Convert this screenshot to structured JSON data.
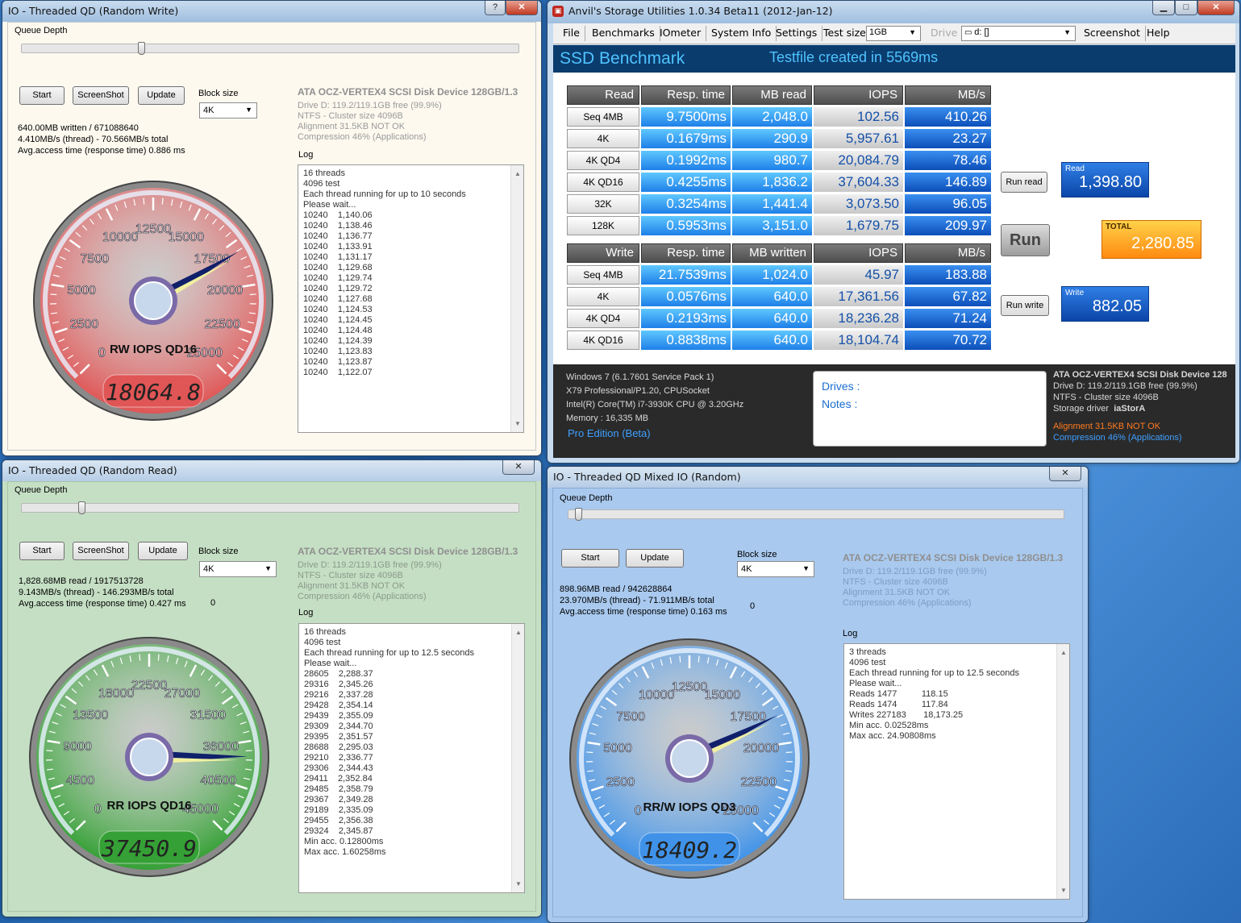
{
  "anvil": {
    "title": "Anvil's Storage Utilities 1.0.34 Beta11 (2012-Jan-12)",
    "menu": [
      "File",
      "Benchmarks",
      "IOmeter",
      "System Info",
      "Settings",
      "Test size"
    ],
    "test_size": "1GB",
    "drive_label": "Drive",
    "drive_value": "d: []",
    "menu_right": [
      "Screenshot",
      "Help"
    ],
    "heading": "SSD Benchmark",
    "status": "Testfile created in 5569ms",
    "read_headers": [
      "Read",
      "Resp. time",
      "MB read",
      "IOPS",
      "MB/s"
    ],
    "read_rows": [
      [
        "Seq 4MB",
        "9.7500ms",
        "2,048.0",
        "102.56",
        "410.26"
      ],
      [
        "4K",
        "0.1679ms",
        "290.9",
        "5,957.61",
        "23.27"
      ],
      [
        "4K QD4",
        "0.1992ms",
        "980.7",
        "20,084.79",
        "78.46"
      ],
      [
        "4K QD16",
        "0.4255ms",
        "1,836.2",
        "37,604.33",
        "146.89"
      ],
      [
        "32K",
        "0.3254ms",
        "1,441.4",
        "3,073.50",
        "96.05"
      ],
      [
        "128K",
        "0.5953ms",
        "3,151.0",
        "1,679.75",
        "209.97"
      ]
    ],
    "write_headers": [
      "Write",
      "Resp. time",
      "MB written",
      "IOPS",
      "MB/s"
    ],
    "write_rows": [
      [
        "Seq 4MB",
        "21.7539ms",
        "1,024.0",
        "45.97",
        "183.88"
      ],
      [
        "4K",
        "0.0576ms",
        "640.0",
        "17,361.56",
        "67.82"
      ],
      [
        "4K QD4",
        "0.2193ms",
        "640.0",
        "18,236.28",
        "71.24"
      ],
      [
        "4K QD16",
        "0.8838ms",
        "640.0",
        "18,104.74",
        "70.72"
      ]
    ],
    "run_read": "Run read",
    "run": "Run",
    "run_write": "Run write",
    "read_score_label": "Read",
    "read_score": "1,398.80",
    "total_label": "TOTAL",
    "total_score": "2,280.85",
    "write_score_label": "Write",
    "write_score": "882.05",
    "sys": [
      "Windows 7 (6.1.7601 Service Pack 1)",
      "X79 Professional/P1.20, CPUSocket",
      "Intel(R) Core(TM) i7-3930K CPU @ 3.20GHz",
      "Memory : 16,335 MB"
    ],
    "edition": "Pro Edition (Beta)",
    "drives_label": "Drives :",
    "notes_label": "Notes :",
    "dev": [
      "ATA OCZ-VERTEX4 SCSI Disk Device 128",
      "Drive D: 119.2/119.1GB free (99.9%)",
      "NTFS - Cluster size 4096B"
    ],
    "driver_label": "Storage driver",
    "driver": "iaStorA",
    "warn": [
      "Alignment 31.5KB NOT OK",
      "Compression 46% (Applications)"
    ]
  },
  "common": {
    "queue_depth": "Queue Depth",
    "start": "Start",
    "screenshot": "ScreenShot",
    "update": "Update",
    "block_size": "Block size",
    "block_value": "4K",
    "log": "Log",
    "dev_head": "ATA OCZ-VERTEX4 SCSI Disk Device 128GB/1.3",
    "dev_lines": [
      "Drive D: 119.2/119.1GB free (99.9%)",
      "NTFS - Cluster size 4096B",
      "Alignment 31.5KB NOT OK",
      "Compression 46% (Applications)"
    ]
  },
  "rw": {
    "title": "IO - Threaded QD (Random Write)",
    "stats": [
      "640.00MB written / 671088640",
      "4.410MB/s (thread) - 70.566MB/s total",
      "Avg.access time (response time) 0.886 ms"
    ],
    "log": "16 threads\n4096 test\nEach thread running for up to 10 seconds\nPlease wait...\n10240    1,140.06\n10240    1,138.46\n10240    1,136.77\n10240    1,133.91\n10240    1,131.17\n10240    1,129.68\n10240    1,129.74\n10240    1,129.72\n10240    1,127.68\n10240    1,124.53\n10240    1,124.45\n10240    1,124.48\n10240    1,124.39\n10240    1,123.83\n10240    1,123.87\n10240    1,122.07",
    "gauge_label": "RW IOPS QD16",
    "gauge_value": "18064.8",
    "needle": 18064.8,
    "max": 25000,
    "ticks": [
      "0",
      "2500",
      "5000",
      "7500",
      "10000",
      "12500",
      "15000",
      "17500",
      "20000",
      "22500",
      "25000"
    ]
  },
  "rr": {
    "title": "IO - Threaded QD (Random Read)",
    "stats": [
      "1,828.68MB read / 1917513728",
      "9.143MB/s (thread) - 146.293MB/s total",
      "Avg.access time (response time) 0.427 ms"
    ],
    "zero": "0",
    "log": "16 threads\n4096 test\nEach thread running for up to 12.5 seconds\nPlease wait...\n28605    2,288.37\n29316    2,345.26\n29216    2,337.28\n29428    2,354.14\n29439    2,355.09\n29309    2,344.70\n29395    2,351.57\n28688    2,295.03\n29210    2,336.77\n29306    2,344.43\n29411    2,352.84\n29485    2,358.79\n29367    2,349.28\n29189    2,335.09\n29455    2,356.38\n29324    2,345.87\nMin acc. 0.12800ms\nMax acc. 1.60258ms",
    "gauge_label": "RR IOPS QD16",
    "gauge_value": "37450.9",
    "needle": 37450.9,
    "max": 45000,
    "ticks": [
      "0",
      "4500",
      "9000",
      "13500",
      "18000",
      "22500",
      "27000",
      "31500",
      "36000",
      "40500",
      "45000"
    ]
  },
  "mx": {
    "title": "IO - Threaded QD Mixed IO (Random)",
    "stats": [
      "898.96MB read / 942628864",
      "23.970MB/s (thread) - 71.911MB/s total",
      "Avg.access time (response time) 0.163 ms"
    ],
    "zero": "0",
    "log": "3 threads\n4096 test\nEach thread running for up to 12.5 seconds\nPlease wait...\nReads 1477          118.15\nReads 1474          117.84\nWrites 227183       18,173.25\nMin acc. 0.02528ms\nMax acc. 24.90808ms",
    "gauge_label": "RR/W IOPS QD3",
    "gauge_value": "18409.2",
    "needle": 18409.2,
    "max": 25000,
    "ticks": [
      "0",
      "2500",
      "5000",
      "7500",
      "10000",
      "12500",
      "15000",
      "17500",
      "20000",
      "22500",
      "25000"
    ]
  },
  "colors": {
    "rw_bg": "#fdf9ef",
    "rr_bg": "#c5dfc4",
    "mx_bg": "#a9c9ee",
    "gauge_red": "#e05555",
    "gauge_green": "#35a035",
    "gauge_blue": "#3f92e8"
  }
}
